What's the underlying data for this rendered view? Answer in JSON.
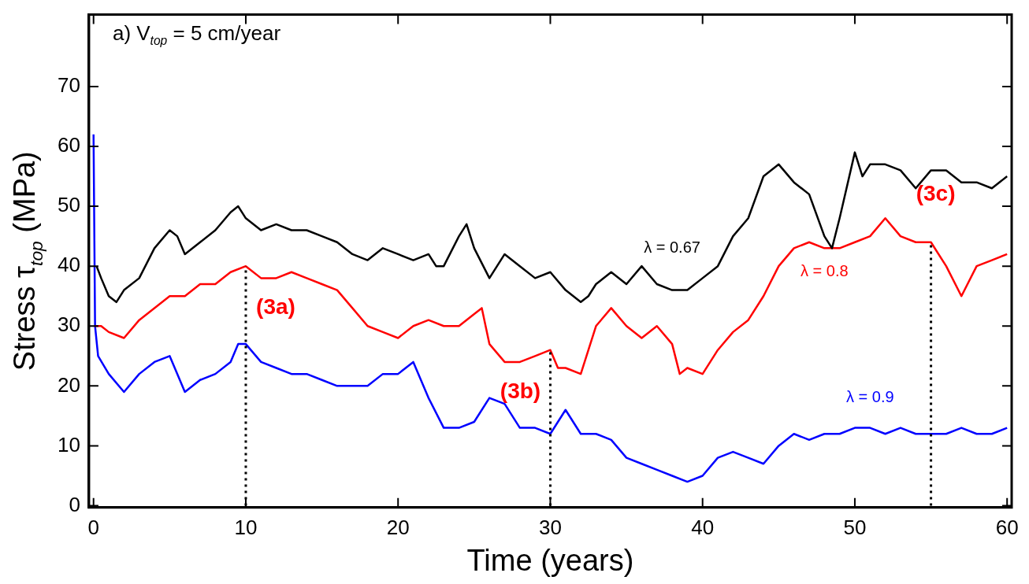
{
  "chart_data": {
    "type": "line",
    "title": "a) V$_{top}$ = 5 cm/year",
    "xlabel": "Time (years)",
    "ylabel": "Stress τ$_{top}$ (MPa)",
    "xlim": [
      -0.3,
      60.3
    ],
    "xticks": [
      0,
      10,
      20,
      30,
      40,
      50,
      60
    ],
    "ylim": [
      -0.3,
      82
    ],
    "yticks": [
      0,
      10,
      20,
      30,
      40,
      50,
      60,
      70
    ],
    "grid": false,
    "legend": false,
    "marker": "none",
    "line_style": "solid",
    "series": [
      {
        "name": "λ = 0.67",
        "color": "#000000",
        "x": [
          0.2,
          0.5,
          1,
          1.5,
          2,
          3,
          4,
          5,
          5.5,
          6,
          7,
          8,
          9,
          9.5,
          10,
          11,
          12,
          13,
          14,
          15,
          16,
          17,
          18,
          19,
          20,
          21,
          22,
          22.5,
          23,
          24,
          24.5,
          25,
          26,
          27,
          28,
          29,
          30,
          31,
          32,
          32.5,
          33,
          34,
          35,
          36,
          37,
          38,
          39,
          40,
          41,
          42,
          43,
          44,
          45,
          46,
          47,
          48,
          48.5,
          49,
          50,
          50.5,
          51,
          52,
          53,
          54,
          55,
          56,
          57,
          58,
          59,
          60
        ],
        "values": [
          40,
          38,
          35,
          34,
          36,
          38,
          43,
          46,
          45,
          42,
          44,
          46,
          49,
          50,
          48,
          46,
          47,
          46,
          46,
          45,
          44,
          42,
          41,
          43,
          42,
          41,
          42,
          40,
          40,
          45,
          47,
          43,
          38,
          42,
          40,
          38,
          39,
          36,
          34,
          35,
          37,
          39,
          37,
          40,
          37,
          36,
          36,
          38,
          40,
          45,
          48,
          55,
          57,
          54,
          52,
          45,
          43,
          48,
          59,
          55,
          57,
          57,
          56,
          53,
          56,
          56,
          54,
          54,
          53,
          55
        ]
      },
      {
        "name": "λ = 0.8",
        "color": "#ff0000",
        "x": [
          0.1,
          0.5,
          1,
          2,
          3,
          4,
          5,
          6,
          7,
          8,
          9,
          10,
          11,
          12,
          13,
          14,
          15,
          16,
          17,
          18,
          19,
          20,
          21,
          22,
          23,
          24,
          25,
          25.5,
          26,
          27,
          28,
          29,
          30,
          30.5,
          31,
          32,
          33,
          34,
          35,
          36,
          37,
          38,
          38.5,
          39,
          40,
          41,
          42,
          43,
          44,
          45,
          46,
          47,
          48,
          49,
          50,
          51,
          52,
          53,
          54,
          55,
          56,
          57,
          58,
          59,
          60
        ],
        "values": [
          30,
          30,
          29,
          28,
          31,
          33,
          35,
          35,
          37,
          37,
          39,
          40,
          38,
          38,
          39,
          38,
          37,
          36,
          33,
          30,
          29,
          28,
          30,
          31,
          30,
          30,
          32,
          33,
          27,
          24,
          24,
          25,
          26,
          23,
          23,
          22,
          30,
          33,
          30,
          28,
          30,
          27,
          22,
          23,
          22,
          26,
          29,
          31,
          35,
          40,
          43,
          44,
          43,
          43,
          44,
          45,
          48,
          45,
          44,
          44,
          40,
          35,
          40,
          41,
          42
        ]
      },
      {
        "name": "λ = 0.9",
        "color": "#0000ff",
        "x": [
          0,
          0.1,
          0.3,
          1,
          2,
          3,
          4,
          5,
          6,
          7,
          8,
          9,
          9.5,
          10,
          11,
          12,
          13,
          14,
          15,
          16,
          17,
          18,
          19,
          20,
          21,
          22,
          23,
          24,
          25,
          26,
          27,
          28,
          29,
          30,
          31,
          32,
          33,
          34,
          35,
          36,
          37,
          38,
          39,
          40,
          41,
          42,
          43,
          44,
          45,
          46,
          47,
          48,
          49,
          50,
          51,
          52,
          53,
          54,
          55,
          56,
          57,
          58,
          59,
          60
        ],
        "values": [
          62,
          30,
          25,
          22,
          19,
          22,
          24,
          25,
          19,
          21,
          22,
          24,
          27,
          27,
          24,
          23,
          22,
          22,
          21,
          20,
          20,
          20,
          22,
          22,
          24,
          18,
          13,
          13,
          14,
          18,
          17,
          13,
          13,
          12,
          16,
          12,
          12,
          11,
          8,
          7,
          6,
          5,
          4,
          5,
          8,
          9,
          8,
          7,
          10,
          12,
          11,
          12,
          12,
          13,
          13,
          12,
          13,
          12,
          12,
          12,
          13,
          12,
          12,
          13
        ]
      }
    ],
    "ref_lines": [
      {
        "axis": "x",
        "value": 10,
        "label": "(3a)",
        "color": "#000000",
        "line_style": "dotted"
      },
      {
        "axis": "x",
        "value": 30,
        "label": "(3b)",
        "color": "#000000",
        "line_style": "dotted"
      },
      {
        "axis": "x",
        "value": 55,
        "label": "(3c)",
        "color": "#000000",
        "line_style": "dotted"
      }
    ]
  }
}
